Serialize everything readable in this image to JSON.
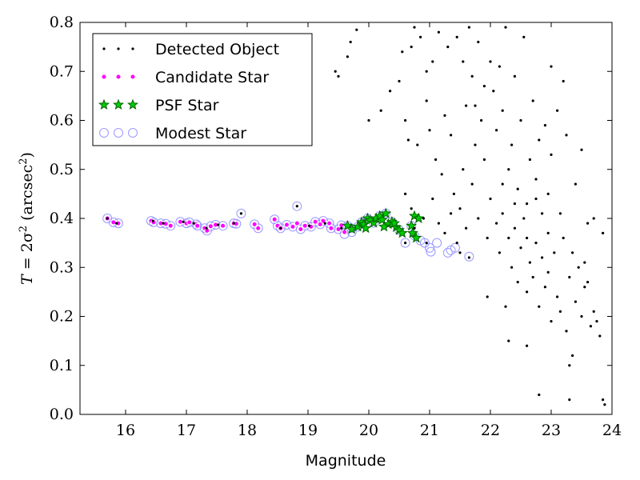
{
  "chart_data": {
    "type": "scatter",
    "xlabel": "Magnitude",
    "ylabel": {
      "prefix": "T",
      "equals": " = 2σ",
      "sup": "2",
      "suffix_open": " (arcsec",
      "suffix_sup": "2",
      "suffix_close": ")"
    },
    "xlim": [
      15.25,
      24.0
    ],
    "ylim": [
      0.0,
      0.8
    ],
    "xticks": [
      16,
      17,
      18,
      19,
      20,
      21,
      22,
      23,
      24
    ],
    "yticks": [
      0.0,
      0.1,
      0.2,
      0.3,
      0.4,
      0.5,
      0.6,
      0.7,
      0.8
    ],
    "xtick_labels": [
      "16",
      "17",
      "18",
      "19",
      "20",
      "21",
      "22",
      "23",
      "24"
    ],
    "ytick_labels": [
      "0.0",
      "0.1",
      "0.2",
      "0.3",
      "0.4",
      "0.5",
      "0.6",
      "0.7",
      "0.8"
    ],
    "grid": false,
    "legend_position": "top-left",
    "colors": {
      "detected": "#000000",
      "candidate": "#ff00ff",
      "psf_fill": "#00cc00",
      "psf_edge": "#006400",
      "modest": "#9999ff"
    },
    "series": [
      {
        "name": "Detected Object",
        "marker": "dot",
        "points": [
          [
            15.7,
            0.4
          ],
          [
            15.85,
            0.39
          ],
          [
            16.45,
            0.395
          ],
          [
            16.62,
            0.39
          ],
          [
            16.95,
            0.393
          ],
          [
            17.12,
            0.39
          ],
          [
            17.33,
            0.38
          ],
          [
            17.52,
            0.387
          ],
          [
            17.78,
            0.39
          ],
          [
            17.9,
            0.41
          ],
          [
            18.55,
            0.38
          ],
          [
            18.82,
            0.425
          ],
          [
            19.02,
            0.385
          ],
          [
            19.28,
            0.39
          ],
          [
            19.55,
            0.38
          ],
          [
            20.6,
            0.35
          ],
          [
            20.95,
            0.35
          ],
          [
            21.5,
            0.33
          ],
          [
            21.65,
            0.32
          ],
          [
            19.45,
            0.7
          ],
          [
            19.65,
            0.73
          ],
          [
            19.5,
            0.69
          ],
          [
            19.7,
            0.76
          ],
          [
            19.8,
            0.785
          ],
          [
            20.0,
            0.6
          ],
          [
            20.2,
            0.62
          ],
          [
            20.35,
            0.66
          ],
          [
            20.5,
            0.68
          ],
          [
            20.55,
            0.74
          ],
          [
            20.7,
            0.75
          ],
          [
            20.75,
            0.79
          ],
          [
            20.85,
            0.77
          ],
          [
            20.95,
            0.7
          ],
          [
            21.05,
            0.72
          ],
          [
            21.15,
            0.78
          ],
          [
            21.3,
            0.75
          ],
          [
            21.45,
            0.77
          ],
          [
            21.55,
            0.72
          ],
          [
            21.65,
            0.79
          ],
          [
            20.6,
            0.6
          ],
          [
            20.65,
            0.56
          ],
          [
            20.8,
            0.55
          ],
          [
            20.95,
            0.64
          ],
          [
            21.0,
            0.58
          ],
          [
            21.1,
            0.52
          ],
          [
            21.2,
            0.49
          ],
          [
            21.25,
            0.61
          ],
          [
            21.35,
            0.57
          ],
          [
            21.4,
            0.45
          ],
          [
            21.5,
            0.42
          ],
          [
            21.55,
            0.5
          ],
          [
            21.6,
            0.63
          ],
          [
            21.7,
            0.47
          ],
          [
            21.75,
            0.55
          ],
          [
            21.8,
            0.4
          ],
          [
            21.85,
            0.6
          ],
          [
            21.9,
            0.52
          ],
          [
            21.95,
            0.36
          ],
          [
            22.0,
            0.44
          ],
          [
            20.6,
            0.45
          ],
          [
            20.7,
            0.42
          ],
          [
            20.75,
            0.38
          ],
          [
            20.9,
            0.4
          ],
          [
            21.05,
            0.44
          ],
          [
            21.15,
            0.39
          ],
          [
            21.25,
            0.37
          ],
          [
            21.35,
            0.41
          ],
          [
            21.45,
            0.35
          ],
          [
            21.6,
            0.38
          ],
          [
            22.05,
            0.66
          ],
          [
            22.1,
            0.58
          ],
          [
            22.15,
            0.71
          ],
          [
            22.2,
            0.62
          ],
          [
            22.25,
            0.79
          ],
          [
            22.3,
            0.5
          ],
          [
            22.35,
            0.55
          ],
          [
            22.4,
            0.69
          ],
          [
            22.45,
            0.46
          ],
          [
            22.5,
            0.6
          ],
          [
            22.55,
            0.77
          ],
          [
            22.6,
            0.43
          ],
          [
            22.65,
            0.52
          ],
          [
            22.7,
            0.64
          ],
          [
            22.75,
            0.48
          ],
          [
            22.8,
            0.56
          ],
          [
            22.85,
            0.41
          ],
          [
            22.9,
            0.59
          ],
          [
            22.95,
            0.45
          ],
          [
            23.0,
            0.53
          ],
          [
            22.1,
            0.39
          ],
          [
            22.15,
            0.33
          ],
          [
            22.2,
            0.41
          ],
          [
            22.3,
            0.36
          ],
          [
            22.35,
            0.3
          ],
          [
            22.4,
            0.38
          ],
          [
            22.45,
            0.27
          ],
          [
            22.5,
            0.34
          ],
          [
            22.55,
            0.4
          ],
          [
            22.6,
            0.25
          ],
          [
            22.65,
            0.31
          ],
          [
            22.7,
            0.28
          ],
          [
            22.75,
            0.35
          ],
          [
            22.8,
            0.22
          ],
          [
            22.85,
            0.32
          ],
          [
            22.9,
            0.26
          ],
          [
            22.95,
            0.29
          ],
          [
            23.0,
            0.19
          ],
          [
            23.05,
            0.33
          ],
          [
            23.1,
            0.24
          ],
          [
            23.15,
            0.21
          ],
          [
            23.2,
            0.36
          ],
          [
            23.25,
            0.17
          ],
          [
            23.3,
            0.28
          ],
          [
            23.35,
            0.12
          ],
          [
            23.4,
            0.23
          ],
          [
            23.45,
            0.3
          ],
          [
            23.5,
            0.2
          ],
          [
            23.55,
            0.26
          ],
          [
            23.6,
            0.39
          ],
          [
            23.65,
            0.18
          ],
          [
            23.7,
            0.21
          ],
          [
            23.75,
            0.19
          ],
          [
            23.8,
            0.16
          ],
          [
            23.85,
            0.37
          ],
          [
            23.85,
            0.03
          ],
          [
            23.88,
            0.02
          ],
          [
            23.3,
            0.03
          ],
          [
            22.8,
            0.04
          ],
          [
            22.6,
            0.14
          ],
          [
            22.3,
            0.15
          ],
          [
            22.25,
            0.22
          ],
          [
            21.95,
            0.24
          ],
          [
            23.3,
            0.1
          ],
          [
            23.2,
            0.68
          ],
          [
            23.1,
            0.62
          ],
          [
            23.0,
            0.71
          ],
          [
            23.25,
            0.57
          ],
          [
            23.5,
            0.54
          ],
          [
            23.4,
            0.47
          ],
          [
            22.0,
            0.72
          ],
          [
            21.9,
            0.67
          ],
          [
            21.8,
            0.76
          ],
          [
            21.75,
            0.63
          ],
          [
            21.7,
            0.69
          ],
          [
            22.2,
            0.47
          ],
          [
            22.4,
            0.43
          ],
          [
            22.6,
            0.36
          ],
          [
            22.75,
            0.44
          ],
          [
            22.95,
            0.37
          ],
          [
            23.15,
            0.41
          ],
          [
            23.35,
            0.33
          ],
          [
            23.55,
            0.31
          ],
          [
            23.6,
            0.27
          ],
          [
            23.7,
            0.4
          ]
        ]
      },
      {
        "name": "Candidate Star",
        "marker": "circle-small",
        "points": [
          [
            15.7,
            0.4
          ],
          [
            15.8,
            0.392
          ],
          [
            15.88,
            0.39
          ],
          [
            16.42,
            0.395
          ],
          [
            16.46,
            0.392
          ],
          [
            16.58,
            0.39
          ],
          [
            16.66,
            0.389
          ],
          [
            16.74,
            0.385
          ],
          [
            16.9,
            0.393
          ],
          [
            17.0,
            0.39
          ],
          [
            17.05,
            0.392
          ],
          [
            17.16,
            0.388
          ],
          [
            17.18,
            0.385
          ],
          [
            17.3,
            0.38
          ],
          [
            17.34,
            0.375
          ],
          [
            17.4,
            0.384
          ],
          [
            17.48,
            0.387
          ],
          [
            17.6,
            0.385
          ],
          [
            17.78,
            0.39
          ],
          [
            17.82,
            0.389
          ],
          [
            18.12,
            0.388
          ],
          [
            18.18,
            0.38
          ],
          [
            18.45,
            0.398
          ],
          [
            18.5,
            0.385
          ],
          [
            18.55,
            0.38
          ],
          [
            18.65,
            0.387
          ],
          [
            18.75,
            0.383
          ],
          [
            18.82,
            0.39
          ],
          [
            18.88,
            0.378
          ],
          [
            18.95,
            0.385
          ],
          [
            19.05,
            0.383
          ],
          [
            19.12,
            0.393
          ],
          [
            19.2,
            0.388
          ],
          [
            19.25,
            0.395
          ],
          [
            19.35,
            0.39
          ],
          [
            19.38,
            0.38
          ],
          [
            19.5,
            0.378
          ],
          [
            19.55,
            0.386
          ],
          [
            19.6,
            0.372
          ],
          [
            19.7,
            0.38
          ]
        ]
      },
      {
        "name": "PSF Star",
        "marker": "star",
        "points": [
          [
            19.65,
            0.385
          ],
          [
            19.72,
            0.378
          ],
          [
            19.82,
            0.383
          ],
          [
            19.88,
            0.392
          ],
          [
            19.92,
            0.388
          ],
          [
            19.98,
            0.4
          ],
          [
            20.02,
            0.396
          ],
          [
            20.08,
            0.391
          ],
          [
            20.12,
            0.4
          ],
          [
            20.18,
            0.405
          ],
          [
            20.22,
            0.397
          ],
          [
            20.28,
            0.41
          ],
          [
            20.32,
            0.388
          ],
          [
            20.38,
            0.393
          ],
          [
            20.45,
            0.382
          ],
          [
            20.5,
            0.376
          ],
          [
            20.55,
            0.37
          ],
          [
            20.7,
            0.385
          ],
          [
            20.75,
            0.405
          ],
          [
            20.82,
            0.4
          ],
          [
            20.72,
            0.37
          ],
          [
            20.78,
            0.36
          ],
          [
            20.42,
            0.39
          ],
          [
            20.25,
            0.383
          ],
          [
            19.95,
            0.38
          ]
        ]
      },
      {
        "name": "Modest Star",
        "marker": "circle-open",
        "points": [
          [
            15.7,
            0.4
          ],
          [
            15.8,
            0.392
          ],
          [
            15.88,
            0.39
          ],
          [
            16.42,
            0.395
          ],
          [
            16.46,
            0.392
          ],
          [
            16.58,
            0.39
          ],
          [
            16.66,
            0.389
          ],
          [
            16.74,
            0.385
          ],
          [
            16.9,
            0.393
          ],
          [
            17.0,
            0.39
          ],
          [
            17.05,
            0.392
          ],
          [
            17.16,
            0.388
          ],
          [
            17.18,
            0.385
          ],
          [
            17.3,
            0.38
          ],
          [
            17.34,
            0.375
          ],
          [
            17.4,
            0.384
          ],
          [
            17.48,
            0.387
          ],
          [
            17.6,
            0.385
          ],
          [
            17.78,
            0.39
          ],
          [
            17.82,
            0.389
          ],
          [
            17.9,
            0.41
          ],
          [
            18.12,
            0.388
          ],
          [
            18.18,
            0.38
          ],
          [
            18.45,
            0.398
          ],
          [
            18.5,
            0.385
          ],
          [
            18.55,
            0.38
          ],
          [
            18.65,
            0.387
          ],
          [
            18.75,
            0.383
          ],
          [
            18.82,
            0.425
          ],
          [
            18.88,
            0.378
          ],
          [
            18.95,
            0.385
          ],
          [
            19.05,
            0.383
          ],
          [
            19.12,
            0.393
          ],
          [
            19.2,
            0.388
          ],
          [
            19.25,
            0.395
          ],
          [
            19.35,
            0.39
          ],
          [
            19.38,
            0.38
          ],
          [
            19.5,
            0.378
          ],
          [
            19.55,
            0.386
          ],
          [
            19.6,
            0.368
          ],
          [
            19.7,
            0.38
          ],
          [
            19.65,
            0.385
          ],
          [
            19.72,
            0.372
          ],
          [
            19.82,
            0.383
          ],
          [
            19.88,
            0.392
          ],
          [
            19.98,
            0.4
          ],
          [
            20.08,
            0.391
          ],
          [
            20.18,
            0.405
          ],
          [
            20.28,
            0.41
          ],
          [
            20.38,
            0.393
          ],
          [
            20.5,
            0.376
          ],
          [
            20.6,
            0.35
          ],
          [
            20.7,
            0.385
          ],
          [
            20.75,
            0.365
          ],
          [
            20.85,
            0.355
          ],
          [
            20.92,
            0.35
          ],
          [
            21.0,
            0.34
          ],
          [
            21.02,
            0.332
          ],
          [
            21.12,
            0.35
          ],
          [
            21.3,
            0.33
          ],
          [
            21.35,
            0.335
          ],
          [
            21.42,
            0.34
          ],
          [
            21.65,
            0.322
          ]
        ]
      }
    ]
  }
}
